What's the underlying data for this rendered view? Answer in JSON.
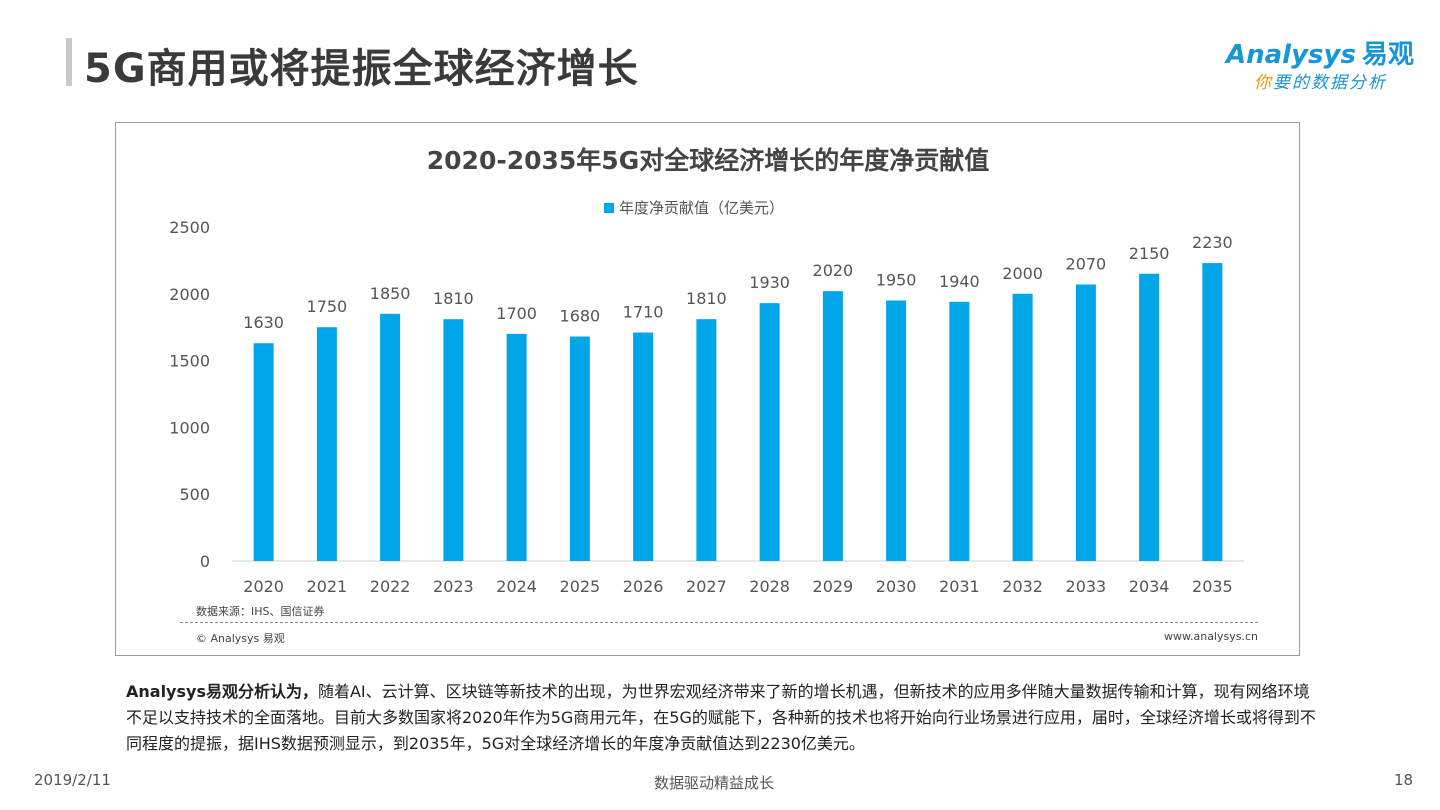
{
  "header": {
    "title": "5G商用或将提振全球经济增长",
    "logo_main": "Analysys",
    "logo_cn": "易观",
    "logo_sub_first": "你",
    "logo_sub_rest": "要的数据分析"
  },
  "chart_data": {
    "type": "bar",
    "title": "2020-2035年5G对全球经济增长的年度净贡献值",
    "legend": "年度净贡献值（亿美元）",
    "categories": [
      "2020",
      "2021",
      "2022",
      "2023",
      "2024",
      "2025",
      "2026",
      "2027",
      "2028",
      "2029",
      "2030",
      "2031",
      "2032",
      "2033",
      "2034",
      "2035"
    ],
    "values": [
      1630,
      1750,
      1850,
      1810,
      1700,
      1680,
      1710,
      1810,
      1930,
      2020,
      1950,
      1940,
      2000,
      2070,
      2150,
      2230
    ],
    "ylim": [
      0,
      2500
    ],
    "yticks": [
      0,
      500,
      1000,
      1500,
      2000,
      2500
    ],
    "bar_color": "#00a6e8",
    "grid": false
  },
  "chart_notes": {
    "source": "数据来源：IHS、国信证券",
    "copyright": "© Analysys 易观",
    "website": "www.analysys.cn"
  },
  "analysis": {
    "lead": "Analysys易观分析认为，",
    "body": "随着AI、云计算、区块链等新技术的出现，为世界宏观经济带来了新的增长机遇，但新技术的应用多伴随大量数据传输和计算，现有网络环境不足以支持技术的全面落地。目前大多数国家将2020年作为5G商用元年，在5G的赋能下，各种新的技术也将开始向行业场景进行应用，届时，全球经济增长或将得到不同程度的提振，据IHS数据预测显示，到2035年，5G对全球经济增长的年度净贡献值达到2230亿美元。"
  },
  "footer": {
    "date": "2019/2/11",
    "center": "数据驱动精益成长",
    "page": "18"
  }
}
